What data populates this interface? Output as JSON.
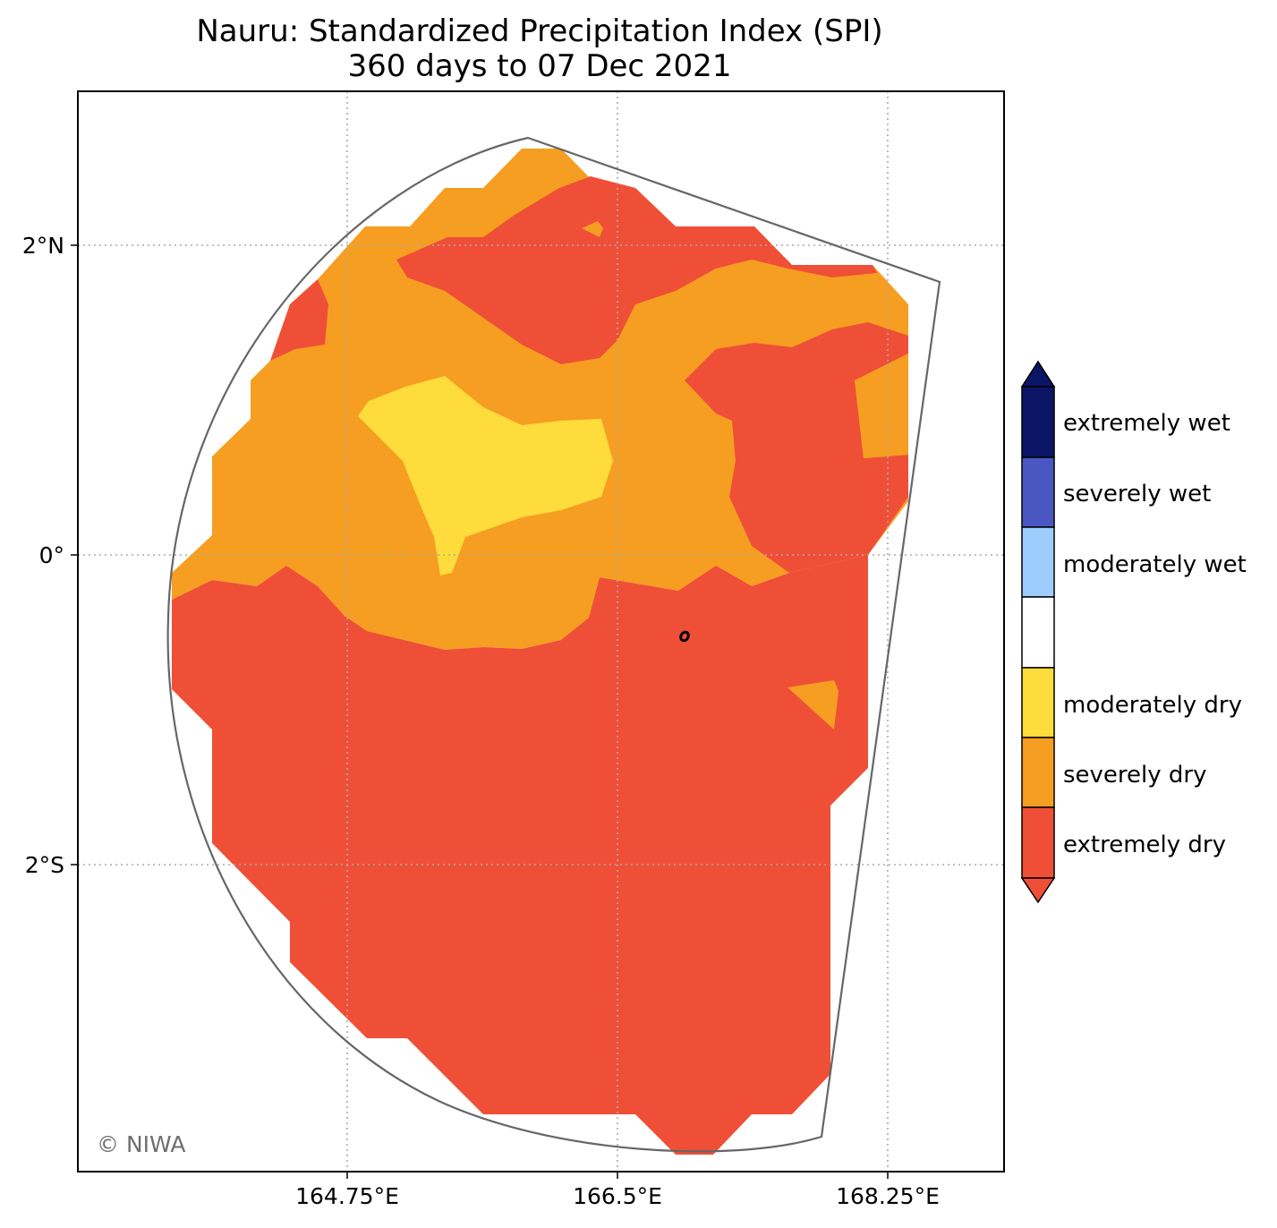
{
  "title": "Nauru: Standardized Precipitation Index (SPI)",
  "subtitle": "360 days to 07 Dec 2021",
  "map": {
    "lon_ticks": [
      "164.75°E",
      "166.5°E",
      "168.25°E"
    ],
    "lat_ticks": [
      "2°N",
      "0°",
      "2°S"
    ],
    "credit": "© NIWA",
    "gridlines": true,
    "gridline_style": "dotted"
  },
  "colorbar": {
    "position": "right",
    "extend": "both",
    "classes": [
      {
        "label": "extremely wet",
        "color": "#0b1566"
      },
      {
        "label": "severely wet",
        "color": "#4a57c2"
      },
      {
        "label": "moderately wet",
        "color": "#9ccdfd"
      },
      {
        "label": "",
        "color": "#ffffff"
      },
      {
        "label": "moderately dry",
        "color": "#fddc3b"
      },
      {
        "label": "severely dry",
        "color": "#f69e21"
      },
      {
        "label": "extremely dry",
        "color": "#ef4f37"
      }
    ]
  },
  "colors": {
    "extremely_dry": "#ef4f37",
    "severely_dry": "#f69e21",
    "moderately_dry": "#fddc3b",
    "boundary": "#666666",
    "grid": "#aaaaaa"
  }
}
